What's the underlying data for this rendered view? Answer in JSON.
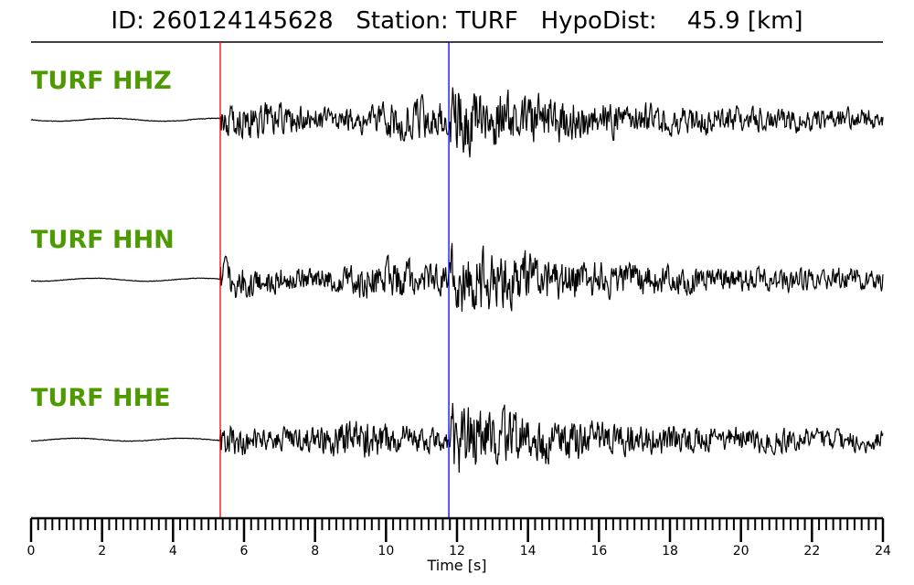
{
  "chart_data": {
    "type": "line",
    "title": "ID: 260124145628   Station: TURF   HypoDist:    45.9 [km]",
    "xlabel": "Time [s]",
    "xlim": [
      0,
      24
    ],
    "xticks": [
      "0",
      "2",
      "4",
      "6",
      "8",
      "10",
      "12",
      "14",
      "16",
      "18",
      "20",
      "22",
      "24"
    ],
    "grid": false,
    "picks": [
      {
        "phase": "P",
        "time": 5.33,
        "color": "#ff0000"
      },
      {
        "phase": "S",
        "time": 11.77,
        "color": "#0000ff"
      }
    ],
    "series": [
      {
        "name": "TURF HHZ",
        "color": "#000000"
      },
      {
        "name": "TURF HHN",
        "color": "#000000"
      },
      {
        "name": "TURF HHE",
        "color": "#000000"
      }
    ],
    "label_color": "#4c9a00"
  }
}
